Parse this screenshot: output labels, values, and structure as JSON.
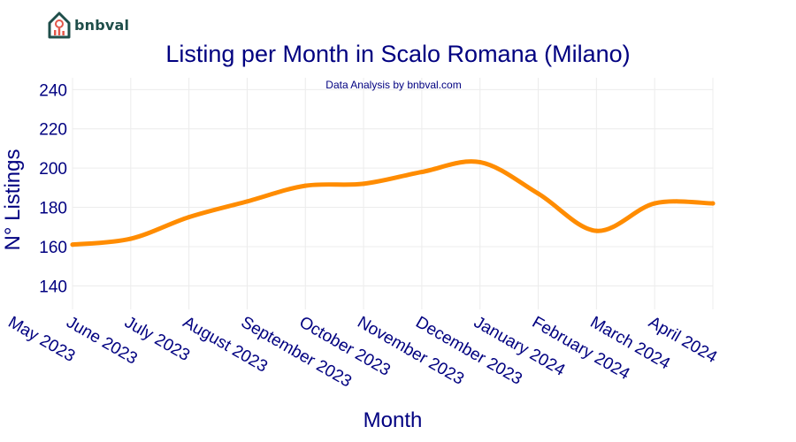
{
  "brand": {
    "name": "bnbval",
    "text_color": "#1f4e4a",
    "accent_color": "#e4574a"
  },
  "chart_data": {
    "type": "line",
    "title": "Listing per Month in Scalo Romana (Milano)",
    "subtitle": "Data Analysis by bnbval.com",
    "xlabel": "Month",
    "ylabel": "N° Listings",
    "categories": [
      "May 2023",
      "June 2023",
      "July 2023",
      "August 2023",
      "September 2023",
      "October 2023",
      "November 2023",
      "December 2023",
      "January 2024",
      "February 2024",
      "March 2024",
      "April 2024"
    ],
    "series": [
      {
        "values": [
          161,
          164,
          175,
          183,
          191,
          192,
          198,
          203,
          187,
          168,
          182,
          182
        ]
      }
    ],
    "ylim": [
      128,
      246
    ],
    "yticks": [
      140,
      160,
      180,
      200,
      220,
      240
    ],
    "grid": true,
    "line_color": "#ff8c00",
    "text_color": "#000080"
  }
}
